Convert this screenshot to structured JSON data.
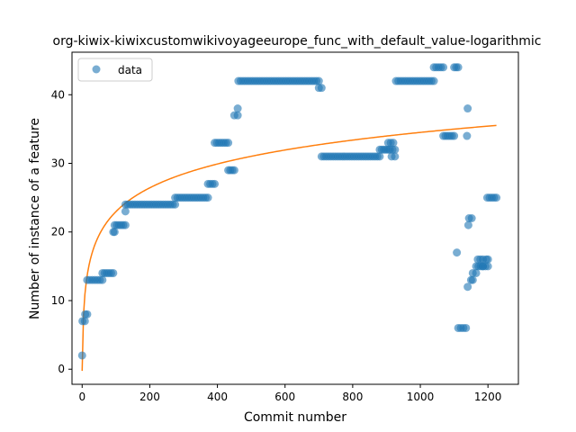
{
  "chart_data": {
    "type": "scatter",
    "title": "org-kiwix-kiwixcustomwikivoyageeurope_func_with_default_value-logarithmic",
    "xlabel": "Commit number",
    "ylabel": "Number of instance of a feature",
    "xlim": [
      -30,
      1290
    ],
    "ylim": [
      -2.2,
      46.2
    ],
    "xticks": [
      0,
      200,
      400,
      600,
      800,
      1000,
      1200
    ],
    "yticks": [
      0,
      10,
      20,
      30,
      40
    ],
    "grid": false,
    "legend": {
      "placement": "top-left",
      "entries": [
        "data"
      ]
    },
    "colors": {
      "data": "#1f77b4",
      "fit": "#ff7f0e"
    },
    "series": [
      {
        "name": "data",
        "kind": "scatter",
        "segments": [
          {
            "x_start": 0,
            "x_end": 0,
            "y": 2
          },
          {
            "x_start": 1,
            "x_end": 8,
            "y": 7
          },
          {
            "x_start": 9,
            "x_end": 15,
            "y": 8
          },
          {
            "x_start": 15,
            "x_end": 60,
            "y": 13
          },
          {
            "x_start": 60,
            "x_end": 92,
            "y": 14
          },
          {
            "x_start": 92,
            "x_end": 96,
            "y": 20
          },
          {
            "x_start": 96,
            "x_end": 128,
            "y": 21
          },
          {
            "x_start": 128,
            "x_end": 128,
            "y": 23
          },
          {
            "x_start": 128,
            "x_end": 275,
            "y": 24
          },
          {
            "x_start": 275,
            "x_end": 372,
            "y": 25
          },
          {
            "x_start": 372,
            "x_end": 392,
            "y": 27
          },
          {
            "x_start": 392,
            "x_end": 432,
            "y": 33
          },
          {
            "x_start": 432,
            "x_end": 450,
            "y": 29
          },
          {
            "x_start": 450,
            "x_end": 460,
            "y": 37
          },
          {
            "x_start": 460,
            "x_end": 462,
            "y": 38
          },
          {
            "x_start": 462,
            "x_end": 700,
            "y": 42
          },
          {
            "x_start": 700,
            "x_end": 708,
            "y": 41
          },
          {
            "x_start": 708,
            "x_end": 880,
            "y": 31
          },
          {
            "x_start": 880,
            "x_end": 905,
            "y": 32
          },
          {
            "x_start": 905,
            "x_end": 920,
            "y": 33
          },
          {
            "x_start": 910,
            "x_end": 925,
            "y": 32
          },
          {
            "x_start": 915,
            "x_end": 925,
            "y": 31
          },
          {
            "x_start": 928,
            "x_end": 1040,
            "y": 42
          },
          {
            "x_start": 1040,
            "x_end": 1068,
            "y": 44
          },
          {
            "x_start": 1068,
            "x_end": 1100,
            "y": 34
          },
          {
            "x_start": 1100,
            "x_end": 1112,
            "y": 44
          },
          {
            "x_start": 1108,
            "x_end": 1108,
            "y": 17
          },
          {
            "x_start": 1112,
            "x_end": 1135,
            "y": 6
          },
          {
            "x_start": 1138,
            "x_end": 1140,
            "y": 34
          },
          {
            "x_start": 1140,
            "x_end": 1142,
            "y": 38
          },
          {
            "x_start": 1140,
            "x_end": 1142,
            "y": 12
          },
          {
            "x_start": 1142,
            "x_end": 1144,
            "y": 21
          },
          {
            "x_start": 1144,
            "x_end": 1152,
            "y": 22
          },
          {
            "x_start": 1150,
            "x_end": 1155,
            "y": 13
          },
          {
            "x_start": 1155,
            "x_end": 1165,
            "y": 14
          },
          {
            "x_start": 1165,
            "x_end": 1185,
            "y": 15
          },
          {
            "x_start": 1170,
            "x_end": 1185,
            "y": 16
          },
          {
            "x_start": 1185,
            "x_end": 1200,
            "y": 15
          },
          {
            "x_start": 1195,
            "x_end": 1200,
            "y": 16
          },
          {
            "x_start": 1198,
            "x_end": 1225,
            "y": 25
          }
        ]
      },
      {
        "kind": "line",
        "function": "logarithmic",
        "a": -0.24,
        "b": 5.03,
        "x_range": [
          0,
          1225
        ]
      }
    ]
  }
}
